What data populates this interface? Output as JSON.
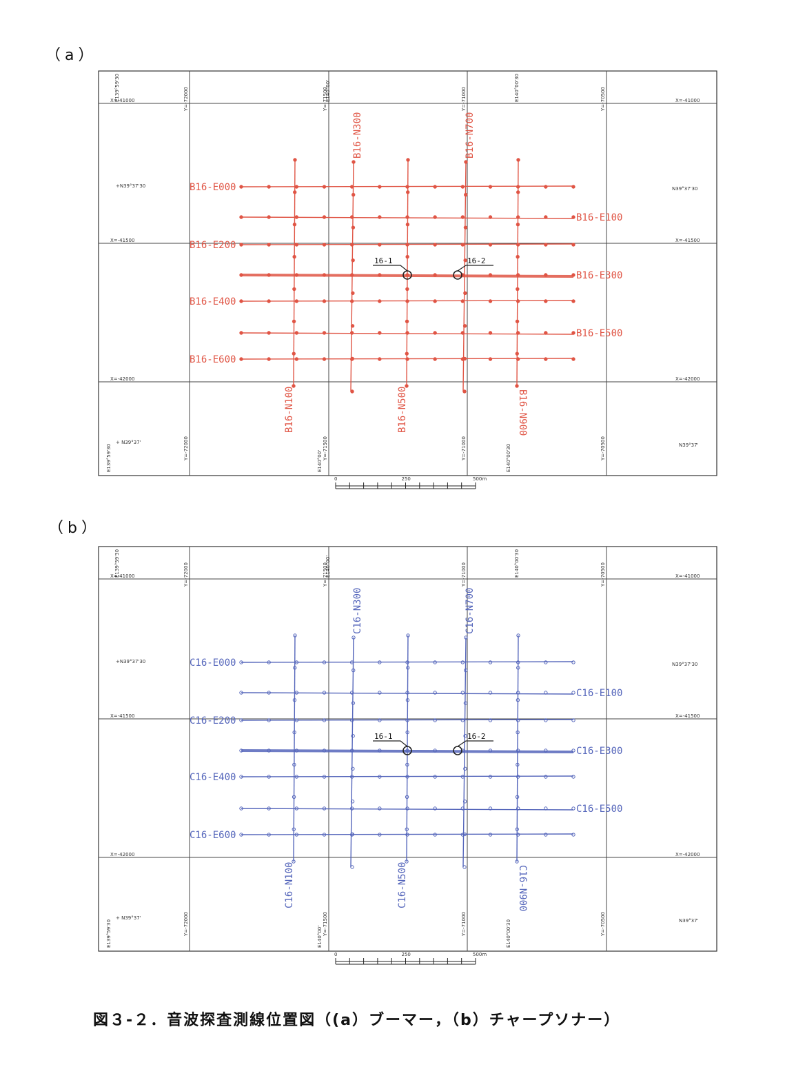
{
  "panels": {
    "a": {
      "label": "（a）",
      "color": "#e05545",
      "east_lines": [
        "B16-E000",
        "B16-E100",
        "B16-E200",
        "B16-E300",
        "B16-E400",
        "B16-E500",
        "B16-E600"
      ],
      "north_lines": [
        "B16-N100",
        "B16-N300",
        "B16-N500",
        "B16-N700",
        "B16-N900"
      ]
    },
    "b": {
      "label": "（b）",
      "color": "#5566bb",
      "east_lines": [
        "C16-E000",
        "C16-E100",
        "C16-E200",
        "C16-E300",
        "C16-E400",
        "C16-E500",
        "C16-E600"
      ],
      "north_lines": [
        "C16-N100",
        "C16-N300",
        "C16-N500",
        "C16-N700",
        "C16-N900"
      ]
    }
  },
  "stations": [
    "16-1",
    "16-2"
  ],
  "grid_labels": {
    "lon_left": "E139°59'30",
    "lon_mid": "E140°00'",
    "lon_right": "E140°00'30",
    "lat_top": "N39°37'30",
    "lat_bottom": "N39°37'",
    "x_top": "X=-41000",
    "x_mid": "X=-41500",
    "x_bottom": "X=-42000",
    "y1": "Y=-72000",
    "y2": "Y=-71500",
    "y3": "Y=-71000",
    "y4": "Y=-70500"
  },
  "scale": {
    "zero": "0",
    "mid": "250",
    "end": "500m"
  },
  "caption": "図３-２．音波探査測線位置図（(a）ブーマー，（b）チャープソナー）"
}
